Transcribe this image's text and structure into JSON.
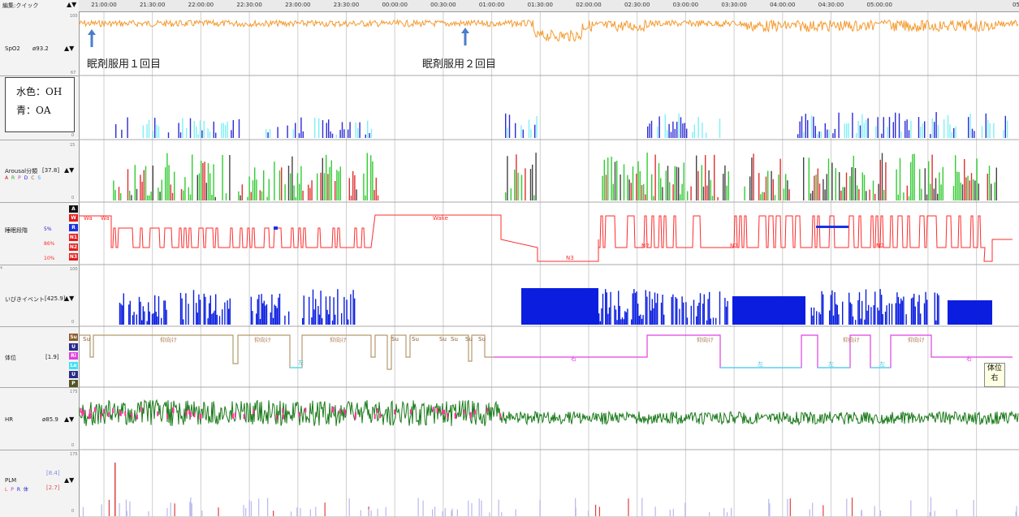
{
  "toolbar": {
    "mode_label": "編集:クイック",
    "arrows": "▲▼"
  },
  "timeline": {
    "ticks": [
      "21:00:00",
      "21:30:00",
      "22:00:00",
      "22:30:00",
      "23:00:00",
      "23:30:00",
      "00:00:00",
      "00:30:00",
      "01:00:00",
      "01:30:00",
      "02:00:00",
      "02:30:00",
      "03:00:00",
      "03:30:00",
      "04:00:00",
      "04:30:00",
      "05:00:00",
      "05"
    ]
  },
  "channels": {
    "spo2": {
      "name": "SpO2",
      "value": "ø93.2",
      "arrows": "▲▼",
      "scale_top": "100",
      "scale_bot": "67",
      "color": "#f59a2e"
    },
    "resp": {
      "scale_bot": "0"
    },
    "arousal": {
      "name": "Arousal分類",
      "value": "[37.8]",
      "arrows": "▲▼",
      "sub_letters": [
        "A",
        "R",
        "P",
        "D",
        "C",
        "S"
      ],
      "scale_top": "15",
      "scale_bot": "0"
    },
    "stage": {
      "name": "睡眠段階",
      "pct_r": "5%",
      "pct_n": "86%",
      "pct_n3": "10%",
      "keys": [
        "A",
        "W",
        "R",
        "N1",
        "N2",
        "N3"
      ],
      "labels": {
        "wa1": "Wa",
        "wa2": "Wa",
        "wake": "Wake",
        "n3": "N3",
        "n2a": "N2",
        "n2b": "N2",
        "n2c": "N2"
      },
      "color": "#ff2b2b"
    },
    "snore": {
      "name": "いびきイベント",
      "value": "[425.9]",
      "arrows": "▲▼",
      "scale_top": "100",
      "scale_bot": "0",
      "color": "#0b1ee0"
    },
    "position": {
      "name": "体位",
      "value": "[1.9]",
      "keys": [
        "Su",
        "U",
        "Ri",
        "Le",
        "U",
        "P"
      ],
      "labels": {
        "su1": "Su",
        "up1": "仰向け",
        "up2": "仰向け",
        "up3": "仰向け",
        "le1": "左",
        "su2": "Su",
        "su3": "Su",
        "su4": "Su",
        "su5": "Su",
        "su6": "Su",
        "su7": "Su",
        "ri1": "右",
        "le2": "左",
        "le3": "左",
        "le4": "左",
        "up4": "仰向け",
        "up5": "仰向け",
        "up6": "仰向け",
        "ri2": "右"
      }
    },
    "hr": {
      "name": "HR",
      "value": "ø85.9",
      "arrows": "▲▼",
      "scale_top": "175",
      "scale_bot": "0",
      "color": "#1a7a1a"
    },
    "plm": {
      "name": "PLM",
      "sub_letters": [
        "L",
        "P",
        "R",
        "体"
      ],
      "val1": "[8.4]",
      "val2": "[2.7]",
      "arrows": "▲▼",
      "scale_top": "175",
      "scale_bot": "0"
    }
  },
  "legend": {
    "line1": "水色：OH",
    "line2": "青：OA"
  },
  "annotations": {
    "dose1": "眠剤服用１回目",
    "dose2": "眠剤服用２回目"
  },
  "tooltip": {
    "line1": "体位",
    "line2": "右"
  },
  "colors": {
    "oh": "#7ff0f5",
    "oa": "#2b2bd6",
    "arousal_green": "#33cc33",
    "arousal_dark": "#444444",
    "position_up": "#b49a6e",
    "position_left": "#3fe0f5",
    "position_right": "#e040e0",
    "pink": "#ff3399"
  }
}
